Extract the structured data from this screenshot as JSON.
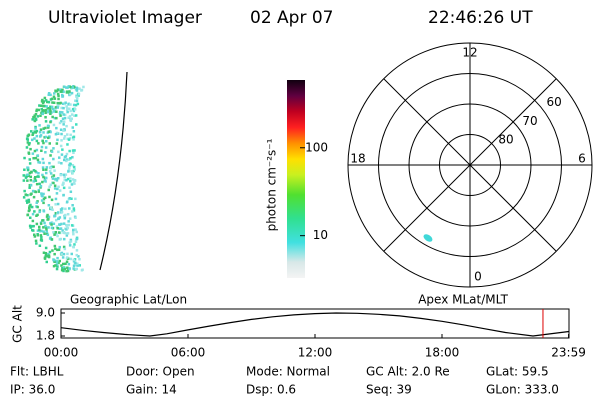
{
  "header": {
    "title": "Ultraviolet Imager",
    "date": "02 Apr 07",
    "time": "22:46:26 UT"
  },
  "chart_data": [
    {
      "type": "colorbar",
      "label": "photon cm⁻²s⁻¹",
      "log": true,
      "lim": [
        3.3,
        590
      ],
      "ticks": [
        10,
        100
      ]
    },
    {
      "type": "polar",
      "rlim": [
        90,
        50
      ],
      "rticks": [
        80,
        70,
        60
      ],
      "theta_ticks": [
        12,
        18,
        6,
        0
      ]
    },
    {
      "type": "line",
      "title_left": "Geographic Lat/Lon",
      "title_right": "Apex MLat/MLT",
      "ylabel": "GC Alt",
      "x": [
        0,
        1,
        2,
        3,
        4.2,
        5,
        6,
        7,
        8,
        9,
        10,
        11,
        12,
        13,
        14,
        15,
        16,
        17,
        18,
        19,
        20,
        21,
        22.3,
        23,
        24
      ],
      "values": [
        4.4,
        3.6,
        2.9,
        2.3,
        1.8,
        2.5,
        3.7,
        4.9,
        6.0,
        7.0,
        7.8,
        8.4,
        8.8,
        9.0,
        8.9,
        8.6,
        8.1,
        7.3,
        6.4,
        5.3,
        4.1,
        2.9,
        1.8,
        2.4,
        3.2
      ],
      "color": "#000000",
      "marker_x": 22.77,
      "marker_color": "#dd0000",
      "xlim": [
        0,
        24
      ],
      "ylim": [
        1.8,
        9.0
      ],
      "xticks": [
        {
          "value": 0,
          "label": "00:00"
        },
        {
          "value": 6,
          "label": "06:00"
        },
        {
          "value": 12,
          "label": "12:00"
        },
        {
          "value": 18,
          "label": "18:00"
        },
        {
          "value": 23.98,
          "label": "23:59"
        }
      ],
      "yticks": [
        {
          "value": 9.0,
          "label": "9.0"
        },
        {
          "value": 1.8,
          "label": "1.8"
        }
      ]
    }
  ],
  "footer": {
    "rows": [
      [
        "Flt: LBHL",
        "Door: Open",
        "Mode: Normal",
        "GC Alt: 2.0 Re",
        "GLat:  59.5"
      ],
      [
        "IP: 36.0",
        "Gain: 14",
        "Dsp:     0.6",
        "Seq: 39",
        "GLon: 333.0"
      ]
    ]
  }
}
